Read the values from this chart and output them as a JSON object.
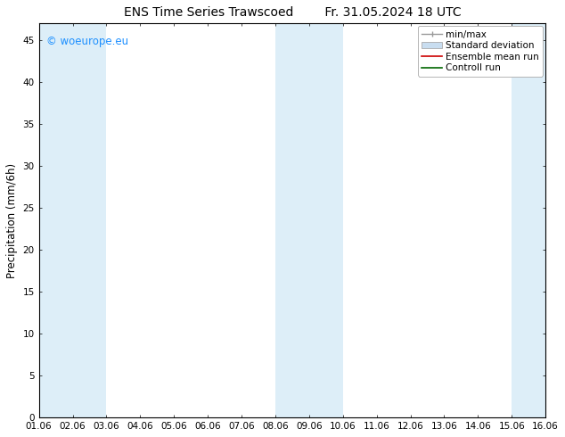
{
  "title_left": "ENS Time Series Trawscoed",
  "title_right": "Fr. 31.05.2024 18 UTC",
  "ylabel": "Precipitation (mm/6h)",
  "xlabel_ticks": [
    "01.06",
    "02.06",
    "03.06",
    "04.06",
    "05.06",
    "06.06",
    "07.06",
    "08.06",
    "09.06",
    "10.06",
    "11.06",
    "12.06",
    "13.06",
    "14.06",
    "15.06",
    "16.06"
  ],
  "xlim": [
    0,
    15
  ],
  "ylim": [
    0,
    47
  ],
  "yticks": [
    0,
    5,
    10,
    15,
    20,
    25,
    30,
    35,
    40,
    45
  ],
  "shaded_bands": [
    {
      "xmin": 0.0,
      "xmax": 1.0,
      "color": "#ddeef8"
    },
    {
      "xmin": 1.0,
      "xmax": 2.0,
      "color": "#ddeef8"
    },
    {
      "xmin": 7.0,
      "xmax": 8.0,
      "color": "#ddeef8"
    },
    {
      "xmin": 8.0,
      "xmax": 9.0,
      "color": "#ddeef8"
    },
    {
      "xmin": 14.0,
      "xmax": 15.0,
      "color": "#ddeef8"
    }
  ],
  "legend_entries": [
    {
      "label": "min/max",
      "color": "#aaaaaa",
      "type": "errorbar"
    },
    {
      "label": "Standard deviation",
      "color": "#c8ddf0",
      "type": "band"
    },
    {
      "label": "Ensemble mean run",
      "color": "#ff0000",
      "type": "line"
    },
    {
      "label": "Controll run",
      "color": "#008000",
      "type": "line"
    }
  ],
  "watermark_text": "© woeurope.eu",
  "watermark_color": "#1e90ff",
  "background_color": "#ffffff",
  "plot_bg_color": "#ffffff",
  "title_fontsize": 10,
  "tick_fontsize": 7.5,
  "ylabel_fontsize": 8.5,
  "legend_fontsize": 7.5
}
